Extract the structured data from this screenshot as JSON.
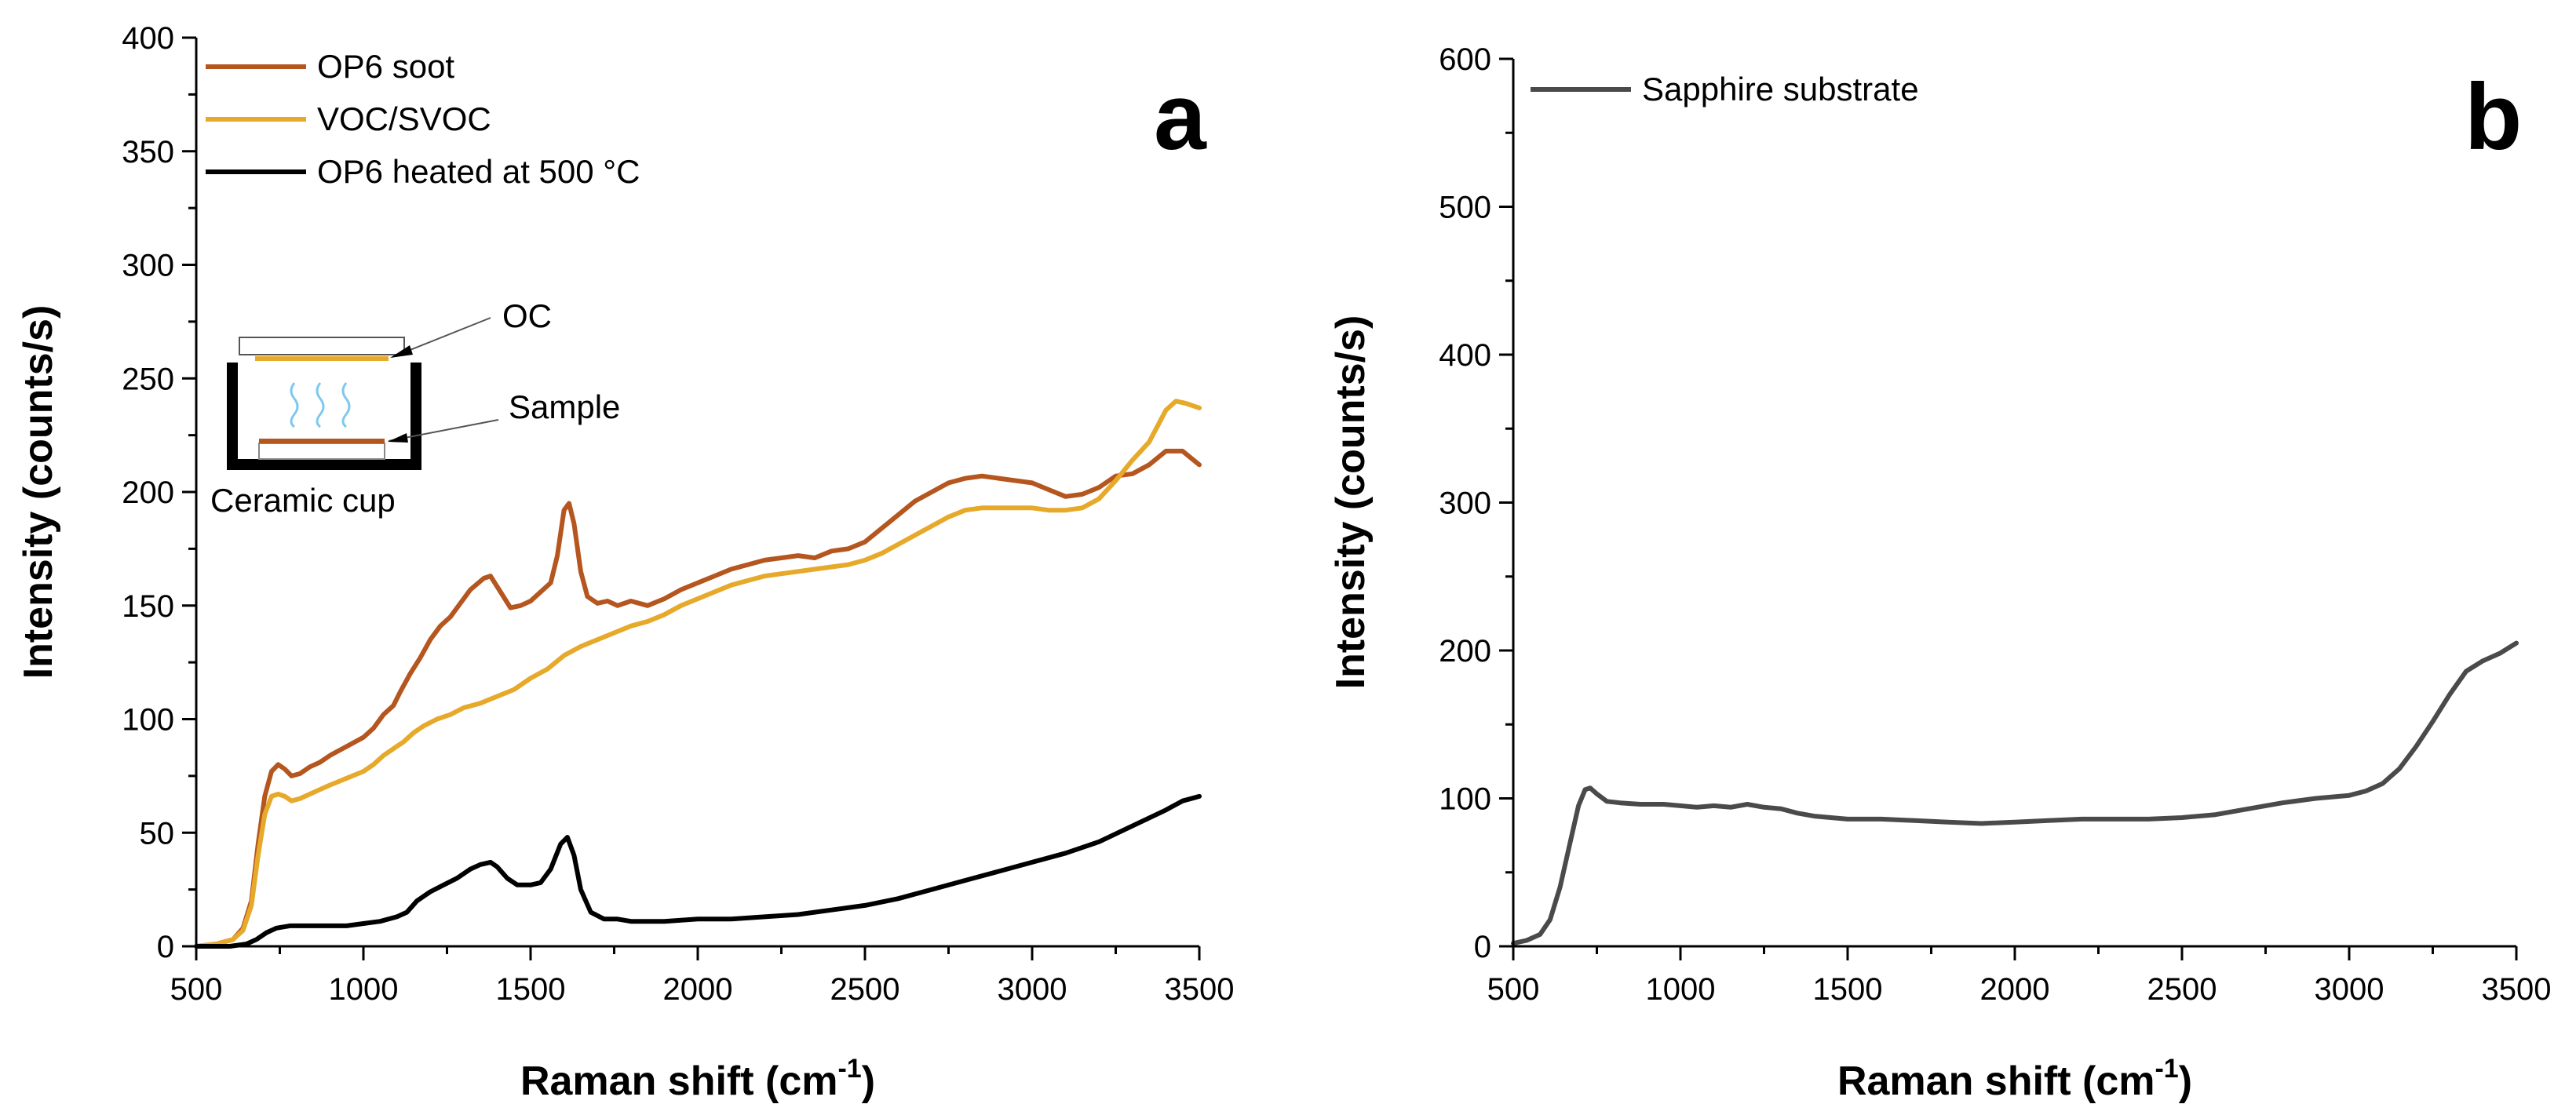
{
  "chart_data": [
    {
      "panel": "a",
      "type": "line",
      "xlabel": "Raman shift (cm",
      "xlabel_sup": "-1",
      "xlabel_end": ")",
      "ylabel": "Intensity (counts/s)",
      "xlim": [
        500,
        3500
      ],
      "ylim": [
        0,
        400
      ],
      "xticks": [
        500,
        1000,
        1500,
        2000,
        2500,
        3000,
        3500
      ],
      "yticks": [
        0,
        50,
        100,
        150,
        200,
        250,
        300,
        350,
        400
      ],
      "legend_position": "top-left",
      "series": [
        {
          "name": "OP6 soot",
          "color": "#b5561f",
          "points": [
            [
              500,
              0
            ],
            [
              560,
              1
            ],
            [
              610,
              3
            ],
            [
              640,
              8
            ],
            [
              665,
              20
            ],
            [
              685,
              45
            ],
            [
              705,
              66
            ],
            [
              725,
              77
            ],
            [
              745,
              80
            ],
            [
              765,
              78
            ],
            [
              785,
              75
            ],
            [
              810,
              76
            ],
            [
              840,
              79
            ],
            [
              870,
              81
            ],
            [
              900,
              84
            ],
            [
              950,
              88
            ],
            [
              1000,
              92
            ],
            [
              1030,
              96
            ],
            [
              1060,
              102
            ],
            [
              1090,
              106
            ],
            [
              1110,
              112
            ],
            [
              1140,
              120
            ],
            [
              1170,
              127
            ],
            [
              1200,
              135
            ],
            [
              1230,
              141
            ],
            [
              1260,
              145
            ],
            [
              1290,
              151
            ],
            [
              1320,
              157
            ],
            [
              1360,
              162
            ],
            [
              1380,
              163
            ],
            [
              1410,
              156
            ],
            [
              1440,
              149
            ],
            [
              1470,
              150
            ],
            [
              1500,
              152
            ],
            [
              1530,
              156
            ],
            [
              1560,
              160
            ],
            [
              1580,
              172
            ],
            [
              1600,
              192
            ],
            [
              1615,
              195
            ],
            [
              1630,
              186
            ],
            [
              1650,
              165
            ],
            [
              1670,
              154
            ],
            [
              1700,
              151
            ],
            [
              1730,
              152
            ],
            [
              1760,
              150
            ],
            [
              1800,
              152
            ],
            [
              1850,
              150
            ],
            [
              1900,
              153
            ],
            [
              1950,
              157
            ],
            [
              2000,
              160
            ],
            [
              2050,
              163
            ],
            [
              2100,
              166
            ],
            [
              2150,
              168
            ],
            [
              2200,
              170
            ],
            [
              2250,
              171
            ],
            [
              2300,
              172
            ],
            [
              2350,
              171
            ],
            [
              2400,
              174
            ],
            [
              2450,
              175
            ],
            [
              2500,
              178
            ],
            [
              2550,
              184
            ],
            [
              2600,
              190
            ],
            [
              2650,
              196
            ],
            [
              2700,
              200
            ],
            [
              2750,
              204
            ],
            [
              2800,
              206
            ],
            [
              2850,
              207
            ],
            [
              2900,
              206
            ],
            [
              2950,
              205
            ],
            [
              3000,
              204
            ],
            [
              3050,
              201
            ],
            [
              3100,
              198
            ],
            [
              3150,
              199
            ],
            [
              3200,
              202
            ],
            [
              3250,
              207
            ],
            [
              3300,
              208
            ],
            [
              3350,
              212
            ],
            [
              3400,
              218
            ],
            [
              3450,
              218
            ],
            [
              3500,
              212
            ]
          ]
        },
        {
          "name": "VOC/SVOC",
          "color": "#e6a92a",
          "points": [
            [
              500,
              0
            ],
            [
              560,
              1
            ],
            [
              610,
              3
            ],
            [
              640,
              7
            ],
            [
              665,
              18
            ],
            [
              685,
              40
            ],
            [
              705,
              58
            ],
            [
              725,
              66
            ],
            [
              745,
              67
            ],
            [
              765,
              66
            ],
            [
              785,
              64
            ],
            [
              810,
              65
            ],
            [
              840,
              67
            ],
            [
              870,
              69
            ],
            [
              900,
              71
            ],
            [
              950,
              74
            ],
            [
              1000,
              77
            ],
            [
              1030,
              80
            ],
            [
              1060,
              84
            ],
            [
              1090,
              87
            ],
            [
              1120,
              90
            ],
            [
              1150,
              94
            ],
            [
              1180,
              97
            ],
            [
              1220,
              100
            ],
            [
              1260,
              102
            ],
            [
              1300,
              105
            ],
            [
              1350,
              107
            ],
            [
              1400,
              110
            ],
            [
              1450,
              113
            ],
            [
              1500,
              118
            ],
            [
              1550,
              122
            ],
            [
              1600,
              128
            ],
            [
              1650,
              132
            ],
            [
              1700,
              135
            ],
            [
              1750,
              138
            ],
            [
              1800,
              141
            ],
            [
              1850,
              143
            ],
            [
              1900,
              146
            ],
            [
              1950,
              150
            ],
            [
              2000,
              153
            ],
            [
              2050,
              156
            ],
            [
              2100,
              159
            ],
            [
              2150,
              161
            ],
            [
              2200,
              163
            ],
            [
              2250,
              164
            ],
            [
              2300,
              165
            ],
            [
              2350,
              166
            ],
            [
              2400,
              167
            ],
            [
              2450,
              168
            ],
            [
              2500,
              170
            ],
            [
              2550,
              173
            ],
            [
              2600,
              177
            ],
            [
              2650,
              181
            ],
            [
              2700,
              185
            ],
            [
              2750,
              189
            ],
            [
              2800,
              192
            ],
            [
              2850,
              193
            ],
            [
              2900,
              193
            ],
            [
              2950,
              193
            ],
            [
              3000,
              193
            ],
            [
              3050,
              192
            ],
            [
              3100,
              192
            ],
            [
              3150,
              193
            ],
            [
              3200,
              197
            ],
            [
              3250,
              205
            ],
            [
              3300,
              214
            ],
            [
              3350,
              222
            ],
            [
              3400,
              236
            ],
            [
              3430,
              240
            ],
            [
              3460,
              239
            ],
            [
              3500,
              237
            ]
          ]
        },
        {
          "name": "OP6 heated at 500 °C",
          "color": "#000000",
          "points": [
            [
              500,
              0
            ],
            [
              600,
              0
            ],
            [
              650,
              1
            ],
            [
              680,
              3
            ],
            [
              710,
              6
            ],
            [
              740,
              8
            ],
            [
              780,
              9
            ],
            [
              850,
              9
            ],
            [
              950,
              9
            ],
            [
              1000,
              10
            ],
            [
              1050,
              11
            ],
            [
              1100,
              13
            ],
            [
              1130,
              15
            ],
            [
              1160,
              20
            ],
            [
              1200,
              24
            ],
            [
              1240,
              27
            ],
            [
              1280,
              30
            ],
            [
              1320,
              34
            ],
            [
              1350,
              36
            ],
            [
              1380,
              37
            ],
            [
              1400,
              35
            ],
            [
              1430,
              30
            ],
            [
              1460,
              27
            ],
            [
              1500,
              27
            ],
            [
              1530,
              28
            ],
            [
              1560,
              34
            ],
            [
              1590,
              45
            ],
            [
              1610,
              48
            ],
            [
              1630,
              40
            ],
            [
              1650,
              25
            ],
            [
              1680,
              15
            ],
            [
              1720,
              12
            ],
            [
              1760,
              12
            ],
            [
              1800,
              11
            ],
            [
              1850,
              11
            ],
            [
              1900,
              11
            ],
            [
              2000,
              12
            ],
            [
              2100,
              12
            ],
            [
              2200,
              13
            ],
            [
              2300,
              14
            ],
            [
              2400,
              16
            ],
            [
              2500,
              18
            ],
            [
              2600,
              21
            ],
            [
              2700,
              25
            ],
            [
              2800,
              29
            ],
            [
              2900,
              33
            ],
            [
              3000,
              37
            ],
            [
              3100,
              41
            ],
            [
              3200,
              46
            ],
            [
              3300,
              53
            ],
            [
              3400,
              60
            ],
            [
              3450,
              64
            ],
            [
              3500,
              66
            ]
          ]
        }
      ],
      "panel_label": "a",
      "inset": {
        "oc_label": "OC",
        "sample_label": "Sample",
        "cup_label": "Ceramic cup"
      }
    },
    {
      "panel": "b",
      "type": "line",
      "xlabel": "Raman shift (cm",
      "xlabel_sup": "-1",
      "xlabel_end": ")",
      "ylabel": "Intensity (counts/s)",
      "xlim": [
        500,
        3500
      ],
      "ylim": [
        0,
        600
      ],
      "xticks": [
        500,
        1000,
        1500,
        2000,
        2500,
        3000,
        3500
      ],
      "yticks": [
        0,
        100,
        200,
        300,
        400,
        500,
        600
      ],
      "legend_position": "top-left",
      "series": [
        {
          "name": "Sapphire substrate",
          "color": "#4a4a4a",
          "points": [
            [
              500,
              2
            ],
            [
              540,
              4
            ],
            [
              580,
              8
            ],
            [
              610,
              18
            ],
            [
              640,
              40
            ],
            [
              670,
              70
            ],
            [
              695,
              95
            ],
            [
              715,
              106
            ],
            [
              730,
              107
            ],
            [
              750,
              103
            ],
            [
              780,
              98
            ],
            [
              820,
              97
            ],
            [
              880,
              96
            ],
            [
              950,
              96
            ],
            [
              1000,
              95
            ],
            [
              1050,
              94
            ],
            [
              1100,
              95
            ],
            [
              1150,
              94
            ],
            [
              1200,
              96
            ],
            [
              1250,
              94
            ],
            [
              1300,
              93
            ],
            [
              1350,
              90
            ],
            [
              1400,
              88
            ],
            [
              1450,
              87
            ],
            [
              1500,
              86
            ],
            [
              1600,
              86
            ],
            [
              1700,
              85
            ],
            [
              1800,
              84
            ],
            [
              1900,
              83
            ],
            [
              2000,
              84
            ],
            [
              2100,
              85
            ],
            [
              2200,
              86
            ],
            [
              2300,
              86
            ],
            [
              2400,
              86
            ],
            [
              2500,
              87
            ],
            [
              2600,
              89
            ],
            [
              2700,
              93
            ],
            [
              2800,
              97
            ],
            [
              2900,
              100
            ],
            [
              3000,
              102
            ],
            [
              3050,
              105
            ],
            [
              3100,
              110
            ],
            [
              3150,
              120
            ],
            [
              3200,
              135
            ],
            [
              3250,
              152
            ],
            [
              3300,
              170
            ],
            [
              3350,
              186
            ],
            [
              3400,
              193
            ],
            [
              3450,
              198
            ],
            [
              3500,
              205
            ]
          ]
        }
      ],
      "panel_label": "b"
    }
  ]
}
